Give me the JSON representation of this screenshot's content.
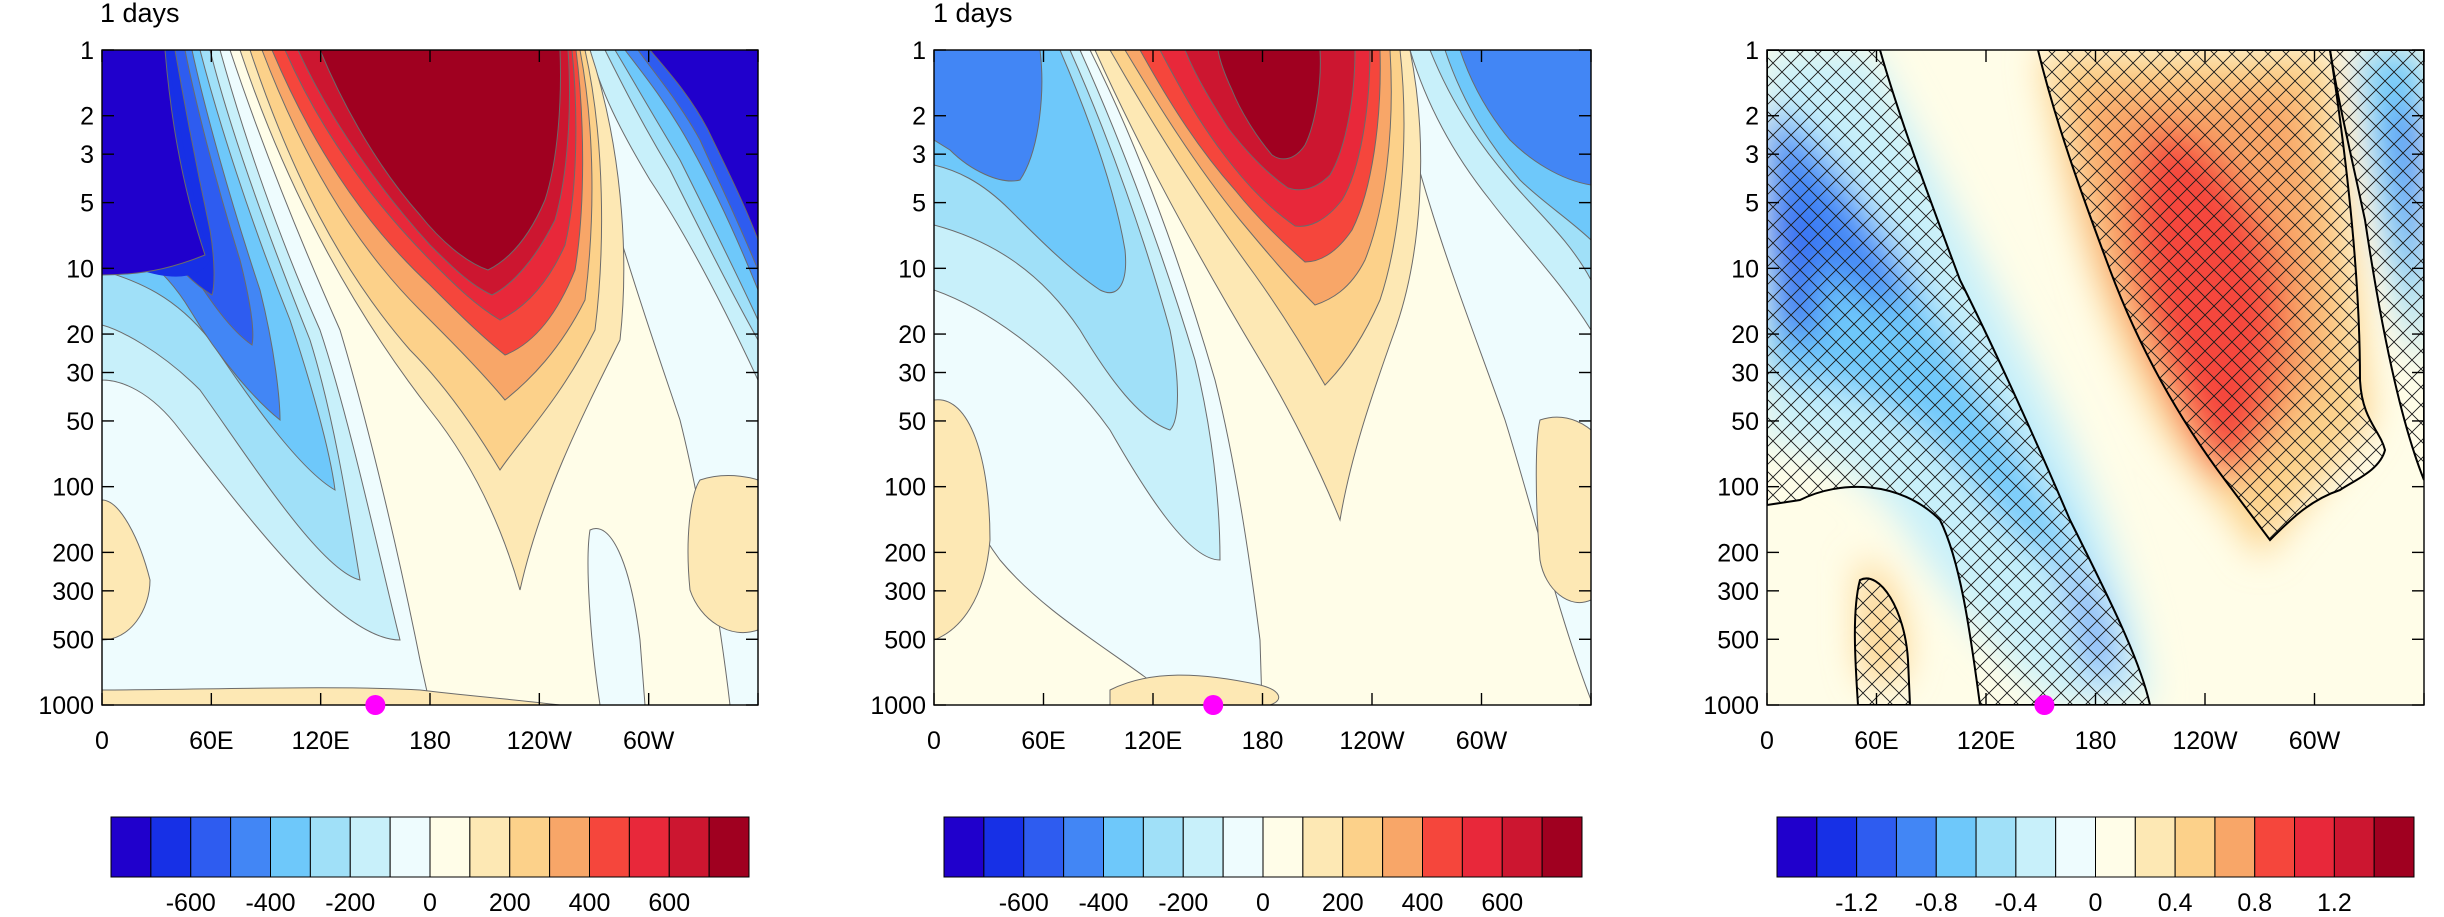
{
  "palette": [
    "#2000cc",
    "#1730e6",
    "#2e5cf0",
    "#4286f5",
    "#6ec8fa",
    "#a0e0f8",
    "#c8f0fa",
    "#eefcfe",
    "#fffde8",
    "#fde8b4",
    "#fcd18a",
    "#f8a668",
    "#f5463c",
    "#e8283a",
    "#cc1630",
    "#a00020"
  ],
  "marker_color": "#ff00ff",
  "chart_data": [
    {
      "type": "heatmap",
      "title": "1 days",
      "x_ticks": [
        "0",
        "60E",
        "120E",
        "180",
        "120W",
        "60W"
      ],
      "y_ticks": [
        "1",
        "2",
        "3",
        "5",
        "10",
        "20",
        "30",
        "50",
        "100",
        "200",
        "300",
        "500",
        "1000"
      ],
      "y_scale": "log",
      "ylim": [
        1000,
        1
      ],
      "xlim_degrees_east": [
        0,
        360
      ],
      "marker": {
        "longitude": 150,
        "pressure": 1000
      },
      "colorbar_labels": [
        "-600",
        "-400",
        "-200",
        "0",
        "200",
        "400",
        "600"
      ],
      "colorbar_levels": [
        -700,
        -600,
        -500,
        -400,
        -300,
        -200,
        -100,
        0,
        100,
        200,
        300,
        400,
        500,
        600,
        700
      ],
      "hatching": false
    },
    {
      "type": "heatmap",
      "title": "1 days",
      "x_ticks": [
        "0",
        "60E",
        "120E",
        "180",
        "120W",
        "60W"
      ],
      "y_ticks": [
        "1",
        "2",
        "3",
        "5",
        "10",
        "20",
        "30",
        "50",
        "100",
        "200",
        "300",
        "500",
        "1000"
      ],
      "y_scale": "log",
      "ylim": [
        1000,
        1
      ],
      "xlim_degrees_east": [
        0,
        360
      ],
      "marker": {
        "longitude": 153,
        "pressure": 1000
      },
      "colorbar_labels": [
        "-600",
        "-400",
        "-200",
        "0",
        "200",
        "400",
        "600"
      ],
      "colorbar_levels": [
        -700,
        -600,
        -500,
        -400,
        -300,
        -200,
        -100,
        0,
        100,
        200,
        300,
        400,
        500,
        600,
        700
      ],
      "hatching": false
    },
    {
      "type": "heatmap",
      "title": "",
      "x_ticks": [
        "0",
        "60E",
        "120E",
        "180",
        "120W",
        "60W"
      ],
      "y_ticks": [
        "1",
        "2",
        "3",
        "5",
        "10",
        "20",
        "30",
        "50",
        "100",
        "200",
        "300",
        "500",
        "1000"
      ],
      "y_scale": "log",
      "ylim": [
        1000,
        1
      ],
      "xlim_degrees_east": [
        0,
        360
      ],
      "marker": {
        "longitude": 152,
        "pressure": 1000
      },
      "colorbar_labels": [
        "-1.2",
        "-0.8",
        "-0.4",
        "0",
        "0.4",
        "0.8",
        "1.2"
      ],
      "colorbar_levels": [
        -1.4,
        -1.2,
        -1.0,
        -0.8,
        -0.6,
        -0.4,
        -0.2,
        0,
        0.2,
        0.4,
        0.6,
        0.8,
        1.0,
        1.2,
        1.4
      ],
      "hatching": true
    }
  ]
}
